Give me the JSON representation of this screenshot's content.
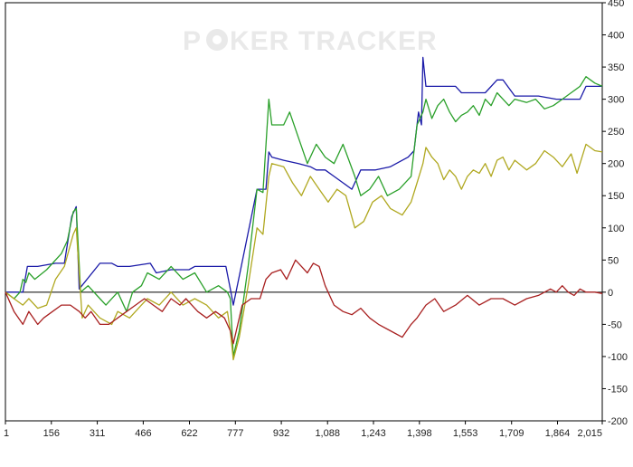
{
  "watermark": {
    "left": "P",
    "middle": "KER",
    "right": "TRACKER"
  },
  "chart_data": {
    "type": "line",
    "title": "",
    "xlabel": "",
    "ylabel": "",
    "xlim": [
      1,
      2015
    ],
    "ylim": [
      -200,
      450
    ],
    "x_ticks": [
      "1",
      "156",
      "311",
      "466",
      "622",
      "777",
      "932",
      "1,088",
      "1,243",
      "1,398",
      "1,553",
      "1,709",
      "1,864",
      "2,015"
    ],
    "y_ticks": [
      450,
      400,
      350,
      300,
      250,
      200,
      150,
      100,
      50,
      0,
      -50,
      -100,
      -150,
      -200
    ],
    "y_axis_position": "right",
    "grid": false,
    "zero_line": true,
    "series": [
      {
        "color": "#1a1aa8",
        "x": [
          1,
          60,
          75,
          110,
          170,
          200,
          225,
          235,
          240,
          250,
          320,
          360,
          380,
          420,
          490,
          510,
          560,
          600,
          620,
          640,
          680,
          720,
          745,
          760,
          770,
          790,
          850,
          880,
          890,
          900,
          940,
          990,
          1030,
          1050,
          1080,
          1110,
          1140,
          1170,
          1200,
          1250,
          1300,
          1360,
          1380,
          1385,
          1395,
          1405,
          1410,
          1420,
          1440,
          1460,
          1520,
          1540,
          1620,
          1660,
          1680,
          1720,
          1800,
          1860,
          1880,
          1900,
          1940,
          1960,
          2015
        ],
        "y": [
          0,
          0,
          40,
          40,
          45,
          45,
          118,
          128,
          133,
          5,
          45,
          45,
          40,
          40,
          45,
          30,
          35,
          35,
          35,
          40,
          40,
          40,
          40,
          5,
          -20,
          25,
          160,
          160,
          218,
          210,
          205,
          200,
          195,
          190,
          190,
          180,
          170,
          160,
          190,
          190,
          195,
          210,
          220,
          240,
          280,
          260,
          365,
          320,
          320,
          320,
          320,
          310,
          310,
          330,
          330,
          305,
          305,
          300,
          300,
          300,
          300,
          320,
          320
        ]
      },
      {
        "color": "#2aa02a",
        "x": [
          1,
          30,
          50,
          60,
          70,
          80,
          100,
          140,
          190,
          210,
          230,
          240,
          255,
          280,
          320,
          340,
          380,
          410,
          430,
          460,
          480,
          520,
          560,
          600,
          640,
          680,
          720,
          750,
          760,
          770,
          790,
          820,
          850,
          870,
          890,
          900,
          940,
          960,
          990,
          1020,
          1050,
          1080,
          1110,
          1140,
          1180,
          1200,
          1230,
          1260,
          1290,
          1330,
          1370,
          1390,
          1410,
          1420,
          1440,
          1460,
          1480,
          1500,
          1520,
          1540,
          1560,
          1580,
          1600,
          1620,
          1640,
          1660,
          1680,
          1700,
          1720,
          1760,
          1790,
          1820,
          1850,
          1880,
          1910,
          1940,
          1960,
          1990,
          2015
        ],
        "y": [
          0,
          -10,
          0,
          20,
          15,
          30,
          20,
          35,
          60,
          80,
          125,
          130,
          0,
          10,
          -10,
          -20,
          0,
          -30,
          0,
          10,
          30,
          20,
          40,
          20,
          30,
          0,
          10,
          0,
          -10,
          -100,
          -60,
          40,
          160,
          155,
          300,
          260,
          260,
          280,
          240,
          200,
          230,
          210,
          200,
          230,
          180,
          150,
          160,
          180,
          150,
          160,
          180,
          260,
          280,
          300,
          270,
          290,
          300,
          280,
          265,
          275,
          280,
          290,
          275,
          300,
          290,
          310,
          300,
          290,
          300,
          295,
          300,
          285,
          290,
          300,
          310,
          320,
          335,
          325,
          320
        ]
      },
      {
        "color": "#b0a820",
        "x": [
          1,
          30,
          60,
          80,
          110,
          140,
          170,
          200,
          230,
          240,
          260,
          280,
          320,
          360,
          380,
          420,
          460,
          480,
          520,
          560,
          600,
          640,
          680,
          720,
          750,
          760,
          770,
          790,
          820,
          850,
          870,
          890,
          900,
          940,
          970,
          1000,
          1030,
          1060,
          1090,
          1120,
          1150,
          1180,
          1210,
          1240,
          1270,
          1300,
          1340,
          1370,
          1390,
          1410,
          1420,
          1440,
          1460,
          1480,
          1500,
          1520,
          1540,
          1560,
          1580,
          1600,
          1620,
          1640,
          1660,
          1680,
          1700,
          1720,
          1760,
          1790,
          1820,
          1850,
          1880,
          1910,
          1930,
          1960,
          1990,
          2015
        ],
        "y": [
          0,
          -10,
          -20,
          -10,
          -25,
          -20,
          20,
          40,
          90,
          100,
          -40,
          -20,
          -40,
          -50,
          -30,
          -40,
          -20,
          -10,
          -20,
          0,
          -20,
          -10,
          -20,
          -40,
          -30,
          -60,
          -105,
          -70,
          10,
          100,
          90,
          180,
          200,
          195,
          170,
          150,
          180,
          160,
          140,
          160,
          150,
          100,
          110,
          140,
          150,
          130,
          120,
          140,
          170,
          200,
          225,
          210,
          200,
          175,
          190,
          180,
          160,
          180,
          190,
          185,
          200,
          180,
          205,
          210,
          190,
          205,
          190,
          200,
          220,
          210,
          195,
          215,
          185,
          230,
          220,
          218
        ]
      },
      {
        "color": "#a82020",
        "x": [
          1,
          30,
          60,
          80,
          110,
          130,
          160,
          190,
          220,
          250,
          270,
          290,
          320,
          350,
          380,
          410,
          440,
          470,
          500,
          530,
          560,
          590,
          610,
          630,
          650,
          680,
          710,
          740,
          760,
          770,
          790,
          800,
          830,
          860,
          880,
          900,
          930,
          950,
          980,
          1000,
          1020,
          1040,
          1060,
          1080,
          1110,
          1140,
          1170,
          1200,
          1230,
          1260,
          1300,
          1340,
          1370,
          1390,
          1420,
          1450,
          1480,
          1520,
          1560,
          1600,
          1640,
          1680,
          1720,
          1760,
          1800,
          1840,
          1860,
          1880,
          1900,
          1920,
          1940,
          1960,
          1990,
          2015
        ],
        "y": [
          0,
          -30,
          -50,
          -30,
          -50,
          -40,
          -30,
          -20,
          -20,
          -30,
          -40,
          -30,
          -50,
          -50,
          -40,
          -30,
          -20,
          -10,
          -20,
          -30,
          -10,
          -20,
          -10,
          -20,
          -30,
          -40,
          -30,
          -40,
          -60,
          -80,
          -40,
          -20,
          -10,
          -10,
          20,
          30,
          35,
          20,
          50,
          40,
          30,
          45,
          40,
          10,
          -20,
          -30,
          -35,
          -25,
          -40,
          -50,
          -60,
          -70,
          -50,
          -40,
          -20,
          -10,
          -30,
          -20,
          -5,
          -20,
          -10,
          -10,
          -20,
          -10,
          -5,
          5,
          0,
          10,
          0,
          -5,
          5,
          0,
          0,
          -2
        ]
      }
    ]
  }
}
